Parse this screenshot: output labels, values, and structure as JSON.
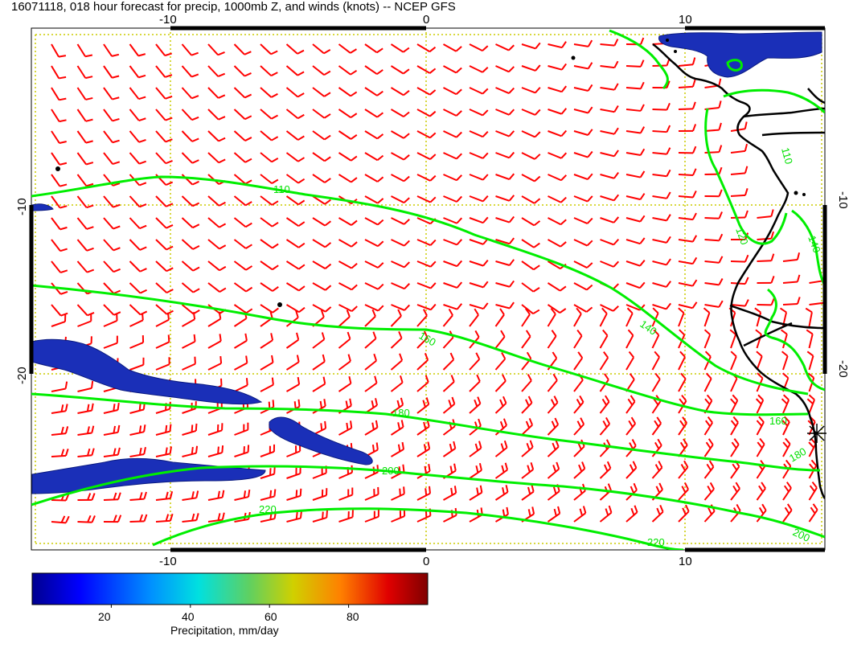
{
  "title": "16071118, 018 hour forecast for precip, 1000mb Z, and winds (knots) -- NCEP GFS",
  "axes": {
    "x_ticks": [
      "-10",
      "0",
      "10"
    ],
    "y_ticks": [
      "-10",
      "-20"
    ]
  },
  "contours": {
    "color": "#00ee00",
    "labels": [
      "110",
      "120",
      "140",
      "140",
      "160",
      "160",
      "180",
      "200",
      "220",
      "220",
      "180",
      "200",
      "110"
    ]
  },
  "colorbar": {
    "ticks": [
      "20",
      "40",
      "60",
      "80"
    ],
    "label": "Precipitation, mm/day",
    "range": [
      0,
      100
    ]
  },
  "wind_barb_color": "#ff0000",
  "grid_color": "#cccc00",
  "coast_color": "#000000"
}
